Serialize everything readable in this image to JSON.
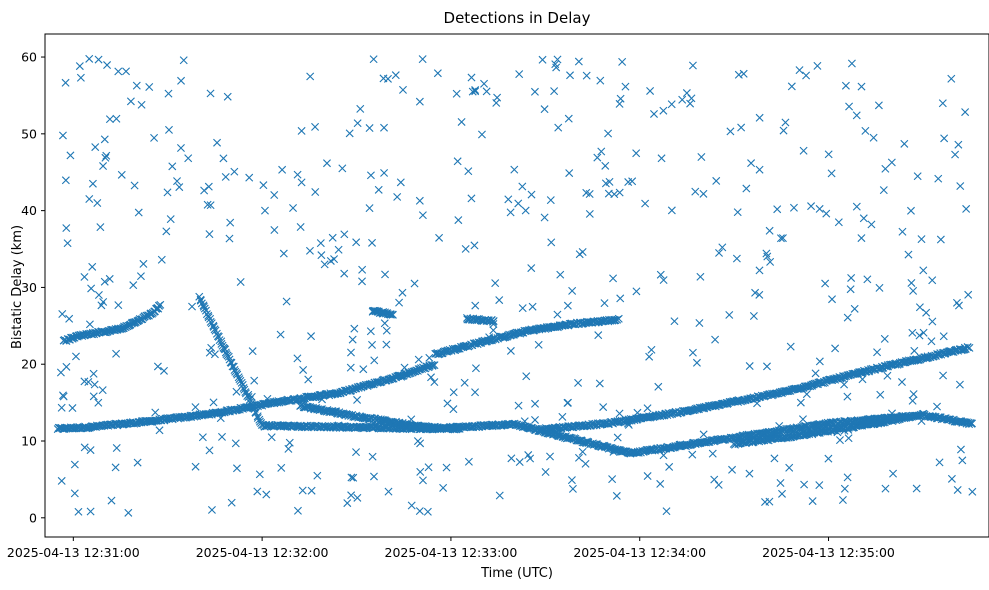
{
  "chart_data": {
    "type": "scatter",
    "title": "Detections in Delay",
    "xlabel": "Time (UTC)",
    "ylabel": "Bistatic Delay (km)",
    "x_unit": "UTC time",
    "xlim": [
      "2025-04-13 12:30:51",
      "2025-04-13 12:35:51"
    ],
    "ylim": [
      -2.5,
      63
    ],
    "x_ticks": [
      "2025-04-13 12:31:00",
      "2025-04-13 12:32:00",
      "2025-04-13 12:33:00",
      "2025-04-13 12:34:00",
      "2025-04-13 12:35:00"
    ],
    "y_ticks": [
      0,
      10,
      20,
      30,
      40,
      50,
      60
    ],
    "marker": "x",
    "color": "#1f77b4",
    "grid": false,
    "legend": "none",
    "start_time": "2025-04-13 12:30:55",
    "end_time": "2025-04-13 12:35:47",
    "tracks": [
      {
        "points": [
          [
            "2025-04-13 12:30:55",
            11.6
          ],
          [
            "2025-04-13 12:31:05",
            11.8
          ],
          [
            "2025-04-13 12:31:25",
            12.6
          ],
          [
            "2025-04-13 12:31:45",
            13.6
          ],
          [
            "2025-04-13 12:32:05",
            15.1
          ],
          [
            "2025-04-13 12:32:25",
            16.3
          ],
          [
            "2025-04-13 12:32:45",
            18.6
          ],
          [
            "2025-04-13 12:32:55",
            20.0
          ]
        ]
      },
      {
        "points": [
          [
            "2025-04-13 12:32:55",
            21.3
          ],
          [
            "2025-04-13 12:33:10",
            22.9
          ],
          [
            "2025-04-13 12:33:25",
            24.4
          ],
          [
            "2025-04-13 12:33:40",
            25.3
          ],
          [
            "2025-04-13 12:33:53",
            25.8
          ]
        ]
      },
      {
        "points": [
          [
            "2025-04-13 12:32:12",
            14.6
          ],
          [
            "2025-04-13 12:32:30",
            13.2
          ],
          [
            "2025-04-13 12:32:50",
            11.9
          ],
          [
            "2025-04-13 12:33:03",
            11.5
          ]
        ]
      },
      {
        "points": [
          [
            "2025-04-13 12:33:28",
            11.5
          ],
          [
            "2025-04-13 12:33:50",
            12.3
          ],
          [
            "2025-04-13 12:34:15",
            13.9
          ],
          [
            "2025-04-13 12:34:45",
            16.3
          ],
          [
            "2025-04-13 12:35:15",
            19.4
          ],
          [
            "2025-04-13 12:35:45",
            22.2
          ]
        ]
      },
      {
        "points": [
          [
            "2025-04-13 12:30:57",
            23.0
          ],
          [
            "2025-04-13 12:31:01",
            23.6
          ],
          [
            "2025-04-13 12:31:15",
            24.6
          ],
          [
            "2025-04-13 12:31:25",
            26.6
          ],
          [
            "2025-04-13 12:31:28",
            27.9
          ]
        ]
      },
      {
        "points": [
          [
            "2025-04-13 12:34:30",
            9.6
          ],
          [
            "2025-04-13 12:34:50",
            10.7
          ],
          [
            "2025-04-13 12:35:10",
            12.0
          ],
          [
            "2025-04-13 12:35:30",
            13.4
          ],
          [
            "2025-04-13 12:35:46",
            12.2
          ]
        ]
      },
      {
        "points": [
          [
            "2025-04-13 12:32:35",
            26.9
          ],
          [
            "2025-04-13 12:32:42",
            26.5
          ]
        ]
      },
      {
        "points": [
          [
            "2025-04-13 12:33:05",
            25.9
          ],
          [
            "2025-04-13 12:33:14",
            25.6
          ]
        ]
      },
      {
        "points": [
          [
            "2025-04-13 12:31:40",
            28.7
          ],
          [
            "2025-04-13 12:32:00",
            12.0
          ],
          [
            "2025-04-13 12:32:55",
            11.6
          ],
          [
            "2025-04-13 12:33:20",
            12.2
          ],
          [
            "2025-04-13 12:33:57",
            8.4
          ],
          [
            "2025-04-13 12:35:00",
            12.3
          ],
          [
            "2025-04-13 12:35:25",
            13.2
          ]
        ]
      }
    ],
    "noise_points": 560,
    "noise_range_km": [
      0.6,
      59.8
    ]
  }
}
